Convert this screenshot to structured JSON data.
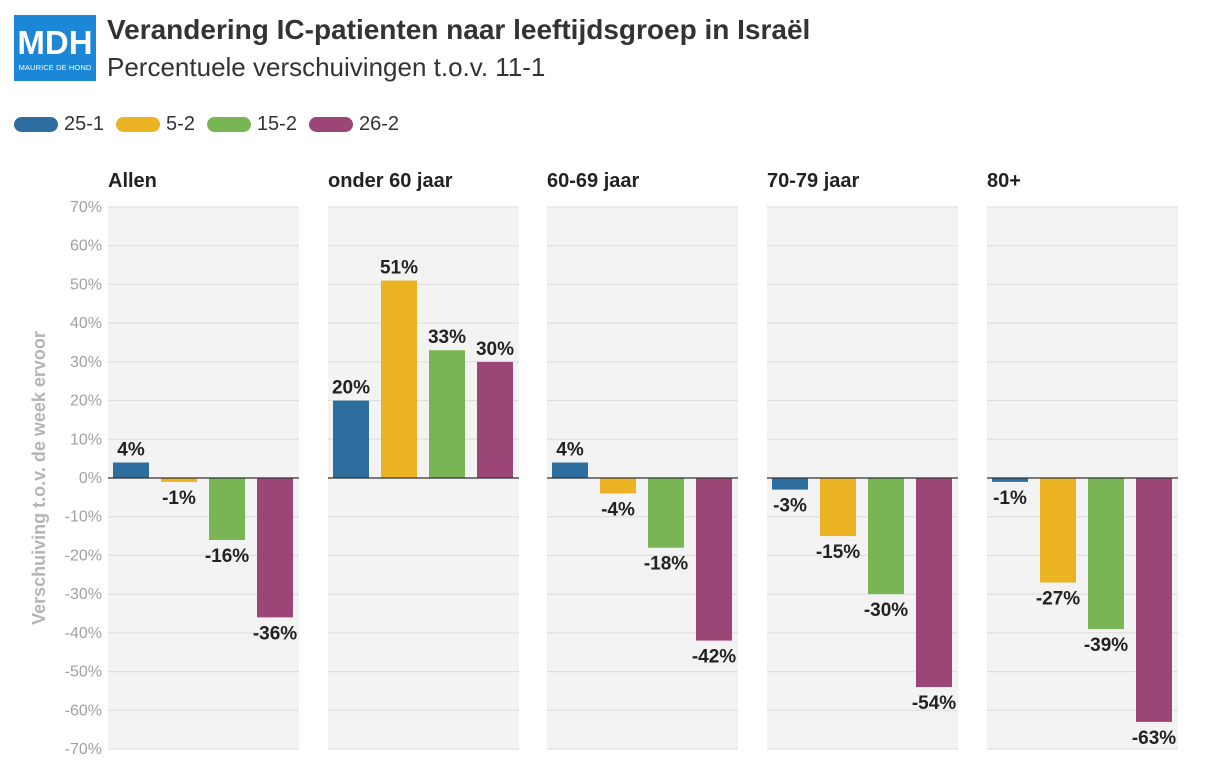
{
  "logo": {
    "text": "MDH",
    "subtext": "MAURICE DE HOND"
  },
  "title": "Verandering IC-patienten naar leeftijdsgroep in Israël",
  "subtitle": "Percentuele verschuivingen t.o.v. 11-1",
  "legend": [
    {
      "label": "25-1",
      "color": "#2e6e9e"
    },
    {
      "label": "5-2",
      "color": "#ebb224"
    },
    {
      "label": "15-2",
      "color": "#79b455"
    },
    {
      "label": "26-2",
      "color": "#9c4677"
    }
  ],
  "chart_data": {
    "type": "bar",
    "ylabel": "Verschuiving t.o.v. de week ervoor",
    "ylim": [
      -70,
      70
    ],
    "yticks": [
      "70%",
      "60%",
      "50%",
      "40%",
      "30%",
      "20%",
      "10%",
      "0%",
      "-10%",
      "-20%",
      "-30%",
      "-40%",
      "-50%",
      "-60%",
      "-70%"
    ],
    "series_names": [
      "25-1",
      "5-2",
      "15-2",
      "26-2"
    ],
    "panels": [
      {
        "title": "Allen",
        "values": [
          4,
          -1,
          -16,
          -36
        ],
        "labels": [
          "4%",
          "-1%",
          "-16%",
          "-36%"
        ]
      },
      {
        "title": "onder 60 jaar",
        "values": [
          20,
          51,
          33,
          30
        ],
        "labels": [
          "20%",
          "51%",
          "33%",
          "30%"
        ]
      },
      {
        "title": "60-69 jaar",
        "values": [
          4,
          -4,
          -18,
          -42
        ],
        "labels": [
          "4%",
          "-4%",
          "-18%",
          "-42%"
        ]
      },
      {
        "title": "70-79 jaar",
        "values": [
          -3,
          -15,
          -30,
          -54
        ],
        "labels": [
          "-3%",
          "-15%",
          "-30%",
          "-54%"
        ]
      },
      {
        "title": "80+",
        "values": [
          -1,
          -27,
          -39,
          -63
        ],
        "labels": [
          "-1%",
          "-27%",
          "-39%",
          "-63%"
        ]
      }
    ]
  }
}
